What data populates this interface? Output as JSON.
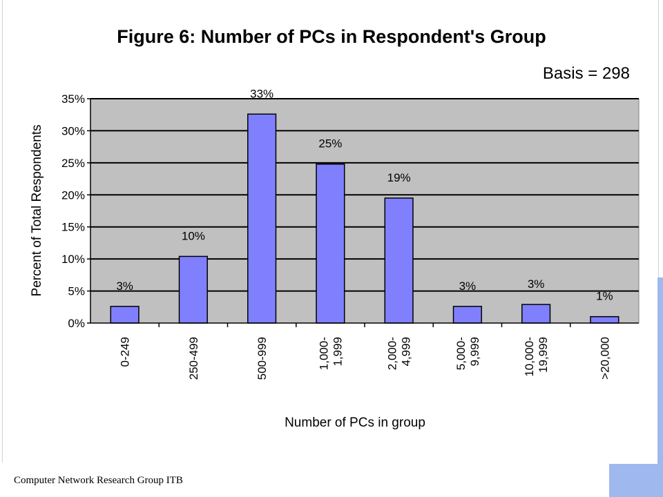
{
  "chart_data": {
    "type": "bar",
    "title": "Figure 6:  Number of PCs in Respondent's Group",
    "annotation": "Basis = 298",
    "xlabel": "Number of PCs in group",
    "ylabel": "Percent of Total Respondents",
    "categories": [
      "0-249",
      "250-499",
      "500-999",
      "1,000- 1,999",
      "2,000- 4,999",
      "5,000- 9,999",
      "10,000- 19,999",
      ">20,000"
    ],
    "category_lines": [
      [
        "0-249"
      ],
      [
        "250-499"
      ],
      [
        "500-999"
      ],
      [
        "1,000-",
        "1,999"
      ],
      [
        "2,000-",
        "4,999"
      ],
      [
        "5,000-",
        "9,999"
      ],
      [
        "10,000-",
        "19,999"
      ],
      [
        ">20,000"
      ]
    ],
    "values": [
      2.6,
      10.4,
      32.6,
      24.8,
      19.5,
      2.6,
      2.9,
      1.0
    ],
    "data_labels": [
      "3%",
      "10%",
      "33%",
      "25%",
      "19%",
      "3%",
      "3%",
      "1%"
    ],
    "ylim": [
      0,
      35
    ],
    "yticks": [
      0,
      5,
      10,
      15,
      20,
      25,
      30,
      35
    ],
    "ytick_labels": [
      "0%",
      "5%",
      "10%",
      "15%",
      "20%",
      "25%",
      "30%",
      "35%"
    ],
    "grid": true,
    "legend": "none",
    "colors": {
      "bar": "#8080ff",
      "plot_bg": "#c0c0c0"
    }
  },
  "footer": {
    "text": "Computer Network Research Group ITB"
  }
}
